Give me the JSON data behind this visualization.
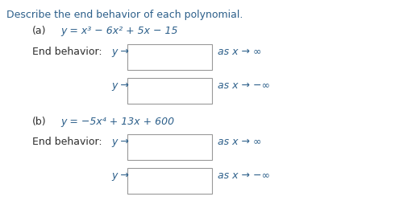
{
  "title": "Describe the end behavior of each polynomial.",
  "part_a_label": "(a)",
  "part_a_eq": "y = x³ − 6x² + 5x − 15",
  "part_b_label": "(b)",
  "part_b_eq": "y = −5x⁴ + 13x + 600",
  "end_behavior_label": "End behavior:",
  "y_arrow": "y →",
  "as_x_pos_inf": "as x → ∞",
  "as_x_neg_inf": "as x → −∞",
  "bg_color": "#ffffff",
  "text_color": "#2d2d2d",
  "italic_color": "#2c5f8a",
  "box_facecolor": "#ffffff",
  "box_edgecolor": "#999999",
  "title_fontsize": 9.0,
  "body_fontsize": 9.0
}
